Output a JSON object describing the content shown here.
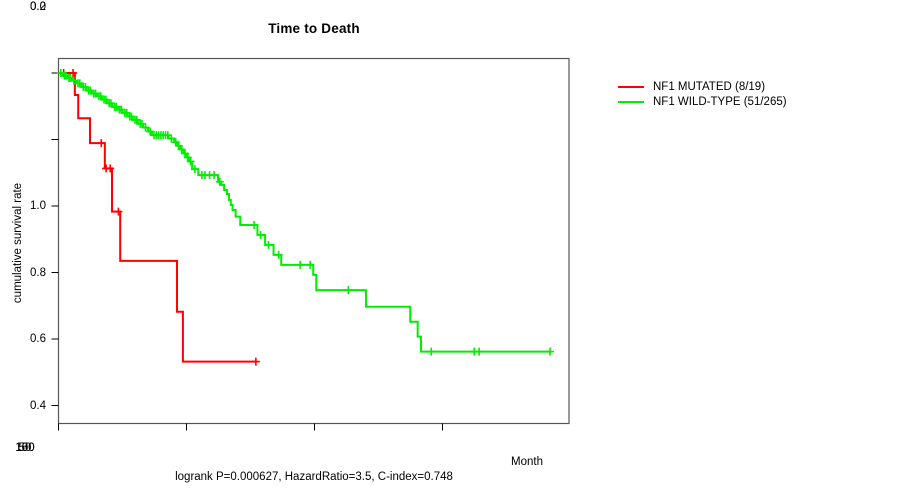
{
  "title": "Time to Death",
  "axes": {
    "x_label": "Month",
    "y_label": "cumulative survival rate",
    "x_ticks": [
      "0",
      "50",
      "100",
      "150"
    ],
    "y_ticks": [
      "1.0",
      "0.8",
      "0.6",
      "0.4",
      "0.2",
      "0.0"
    ]
  },
  "caption": "logrank P=0.000627, HazardRatio=3.5, C-index=0.748",
  "legend": {
    "items": [
      {
        "label": "NF1 MUTATED (8/19)",
        "color": "#ff0000"
      },
      {
        "label": "NF1 WILD-TYPE (51/265)",
        "color": "#00ee00"
      }
    ]
  },
  "colors": {
    "mutated": "#ff0000",
    "wildtype": "#00ee00",
    "box": "#555555",
    "tick": "#000000"
  },
  "chart_data": {
    "type": "line",
    "subtype": "kaplan-meier-step",
    "title": "Time to Death",
    "xlabel": "Month",
    "ylabel": "cumulative survival rate",
    "xlim": [
      0,
      200
    ],
    "ylim": [
      0.0,
      1.0
    ],
    "x_tick_values": [
      0,
      50,
      100,
      150
    ],
    "y_tick_values": [
      1.0,
      0.8,
      0.6,
      0.4,
      0.2,
      0.0
    ],
    "grid": false,
    "legend_position": "right-outside",
    "annotation": "logrank P=0.000627, HazardRatio=3.5, C-index=0.748",
    "series": [
      {
        "name": "NF1 MUTATED (8/19)",
        "color": "#ff0000",
        "events": "8/19",
        "end_month": 77.1,
        "steps": [
          [
            0,
            1.0
          ],
          [
            6.4,
            0.934
          ],
          [
            7.7,
            0.864
          ],
          [
            12.3,
            0.789
          ],
          [
            18.1,
            0.713
          ],
          [
            20.9,
            0.583
          ],
          [
            24.1,
            0.435
          ],
          [
            46.3,
            0.282
          ],
          [
            48.6,
            0.132
          ]
        ],
        "censor_marks": [
          [
            2.0,
            1.0
          ],
          [
            5.7,
            1.0
          ],
          [
            16.7,
            0.789
          ],
          [
            18.6,
            0.713
          ],
          [
            20.2,
            0.713
          ],
          [
            23.4,
            0.583
          ],
          [
            77.1,
            0.132
          ]
        ]
      },
      {
        "name": "NF1 WILD-TYPE (51/265)",
        "color": "#00ee00",
        "events": "51/265",
        "end_month": 192,
        "steps": [
          [
            0,
            1.0
          ],
          [
            1.8,
            0.992
          ],
          [
            3.5,
            0.985
          ],
          [
            5.3,
            0.977
          ],
          [
            7,
            0.969
          ],
          [
            9,
            0.958
          ],
          [
            11,
            0.947
          ],
          [
            13,
            0.938
          ],
          [
            15,
            0.93
          ],
          [
            17,
            0.92
          ],
          [
            19,
            0.909
          ],
          [
            21,
            0.898
          ],
          [
            23,
            0.89
          ],
          [
            25,
            0.88
          ],
          [
            27,
            0.869
          ],
          [
            29,
            0.859
          ],
          [
            31,
            0.847
          ],
          [
            33,
            0.836
          ],
          [
            35,
            0.824
          ],
          [
            36.5,
            0.813
          ],
          [
            43,
            0.803
          ],
          [
            45.2,
            0.792
          ],
          [
            46.5,
            0.781
          ],
          [
            47.5,
            0.77
          ],
          [
            48.8,
            0.758
          ],
          [
            50,
            0.746
          ],
          [
            51,
            0.734
          ],
          [
            52.2,
            0.711
          ],
          [
            54.6,
            0.693
          ],
          [
            62.3,
            0.673
          ],
          [
            63.5,
            0.663
          ],
          [
            64.7,
            0.648
          ],
          [
            65.8,
            0.636
          ],
          [
            66.6,
            0.618
          ],
          [
            67.3,
            0.603
          ],
          [
            68,
            0.588
          ],
          [
            69.2,
            0.568
          ],
          [
            71,
            0.543
          ],
          [
            77.7,
            0.513
          ],
          [
            80.7,
            0.483
          ],
          [
            84,
            0.453
          ],
          [
            87,
            0.423
          ],
          [
            99.5,
            0.393
          ],
          [
            100.7,
            0.347
          ],
          [
            120.1,
            0.297
          ],
          [
            137.4,
            0.252
          ],
          [
            140.3,
            0.207
          ],
          [
            141.6,
            0.162
          ]
        ],
        "censor_marks": [
          [
            0.9,
            1.0
          ],
          [
            2.3,
            0.992
          ],
          [
            2.9,
            0.992
          ],
          [
            4.1,
            0.985
          ],
          [
            4.7,
            0.985
          ],
          [
            6.0,
            0.977
          ],
          [
            7.6,
            0.969
          ],
          [
            8.3,
            0.969
          ],
          [
            9.7,
            0.958
          ],
          [
            10.5,
            0.958
          ],
          [
            11.8,
            0.947
          ],
          [
            12.5,
            0.947
          ],
          [
            13.8,
            0.938
          ],
          [
            14.5,
            0.938
          ],
          [
            15.8,
            0.93
          ],
          [
            16.5,
            0.93
          ],
          [
            17.8,
            0.92
          ],
          [
            18.5,
            0.92
          ],
          [
            19.8,
            0.909
          ],
          [
            20.5,
            0.909
          ],
          [
            21.9,
            0.898
          ],
          [
            22.6,
            0.898
          ],
          [
            23.8,
            0.89
          ],
          [
            24.5,
            0.89
          ],
          [
            25.9,
            0.88
          ],
          [
            26.6,
            0.88
          ],
          [
            27.8,
            0.869
          ],
          [
            28.5,
            0.869
          ],
          [
            29.9,
            0.859
          ],
          [
            30.6,
            0.859
          ],
          [
            31.9,
            0.847
          ],
          [
            32.6,
            0.847
          ],
          [
            34,
            0.836
          ],
          [
            35.8,
            0.824
          ],
          [
            37.3,
            0.813
          ],
          [
            38.2,
            0.813
          ],
          [
            39.1,
            0.813
          ],
          [
            40,
            0.813
          ],
          [
            40.9,
            0.813
          ],
          [
            41.8,
            0.813
          ],
          [
            42.7,
            0.813
          ],
          [
            44.1,
            0.803
          ],
          [
            45.8,
            0.792
          ],
          [
            47,
            0.781
          ],
          [
            48.1,
            0.77
          ],
          [
            49.4,
            0.758
          ],
          [
            50.5,
            0.746
          ],
          [
            51.6,
            0.734
          ],
          [
            53.3,
            0.711
          ],
          [
            56,
            0.693
          ],
          [
            57.2,
            0.693
          ],
          [
            59,
            0.693
          ],
          [
            60.8,
            0.693
          ],
          [
            63,
            0.673
          ],
          [
            76.4,
            0.543
          ],
          [
            78.9,
            0.513
          ],
          [
            82,
            0.483
          ],
          [
            86,
            0.453
          ],
          [
            94.4,
            0.423
          ],
          [
            98.3,
            0.423
          ],
          [
            113.2,
            0.347
          ],
          [
            145.6,
            0.162
          ],
          [
            162.4,
            0.162
          ],
          [
            164.3,
            0.162
          ],
          [
            192,
            0.162
          ]
        ]
      }
    ]
  }
}
